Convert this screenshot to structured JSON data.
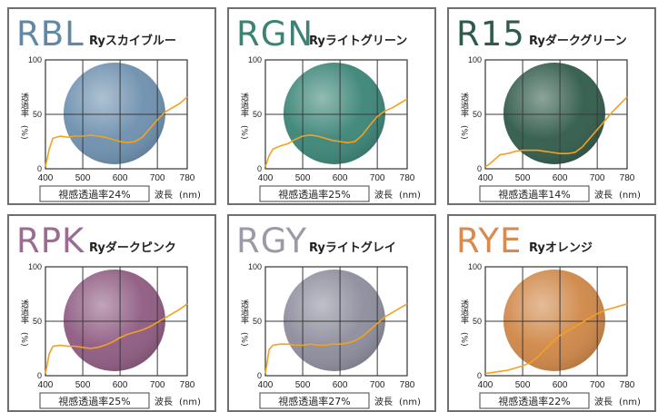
{
  "chart_data": [
    {
      "type": "line",
      "code": "RBL",
      "name": "Ryスカイブルー",
      "lens_color": "#6c8fae",
      "code_color": "#5f89a7",
      "xlabel": "波長",
      "xunit": "(nm)",
      "ylabel": "透過率",
      "yunit": "(%)",
      "xlim": [
        400,
        780
      ],
      "ylim": [
        0,
        100
      ],
      "x_ticks": [
        "400",
        "500",
        "600",
        "700",
        "780"
      ],
      "y_ticks": [
        "0",
        "50",
        "100"
      ],
      "visible_label": "視感透過率24%",
      "series": [
        {
          "x": [
            400,
            410,
            420,
            440,
            460,
            480,
            500,
            520,
            540,
            560,
            580,
            600,
            620,
            640,
            660,
            680,
            700,
            720,
            740,
            760,
            780
          ],
          "y": [
            2,
            18,
            28,
            30,
            29,
            30,
            30,
            31,
            30,
            29,
            27,
            25,
            24,
            25,
            29,
            37,
            45,
            52,
            56,
            60,
            66
          ]
        }
      ]
    },
    {
      "type": "line",
      "code": "RGN",
      "name": "Ryライトグリーン",
      "lens_color": "#3a8476",
      "code_color": "#3c8376",
      "xlabel": "波長",
      "xunit": "(nm)",
      "ylabel": "透過率",
      "yunit": "(%)",
      "xlim": [
        400,
        780
      ],
      "ylim": [
        0,
        100
      ],
      "x_ticks": [
        "400",
        "500",
        "600",
        "700",
        "780"
      ],
      "y_ticks": [
        "0",
        "50",
        "100"
      ],
      "visible_label": "視感透過率25%",
      "series": [
        {
          "x": [
            400,
            410,
            420,
            440,
            460,
            480,
            500,
            520,
            540,
            560,
            580,
            600,
            620,
            640,
            660,
            680,
            700,
            720,
            740,
            760,
            780
          ],
          "y": [
            2,
            12,
            18,
            21,
            23,
            27,
            30,
            31,
            30,
            28,
            26,
            25,
            24,
            25,
            31,
            40,
            48,
            53,
            56,
            60,
            64
          ]
        }
      ]
    },
    {
      "type": "line",
      "code": "R15",
      "name": "Ryダークグリーン",
      "lens_color": "#2f5a49",
      "code_color": "#2e5b4b",
      "xlabel": "波長",
      "xunit": "(nm)",
      "ylabel": "透過率",
      "yunit": "(%)",
      "xlim": [
        400,
        780
      ],
      "ylim": [
        0,
        100
      ],
      "x_ticks": [
        "400",
        "500",
        "600",
        "700",
        "780"
      ],
      "y_ticks": [
        "0",
        "50",
        "100"
      ],
      "visible_label": "視感透過率14%",
      "series": [
        {
          "x": [
            400,
            410,
            420,
            440,
            460,
            480,
            500,
            520,
            540,
            560,
            580,
            600,
            620,
            640,
            660,
            680,
            700,
            720,
            740,
            760,
            780
          ],
          "y": [
            2,
            4,
            7,
            13,
            14,
            16,
            17,
            17,
            17,
            16,
            15,
            14,
            14,
            15,
            20,
            28,
            36,
            44,
            52,
            59,
            66
          ]
        }
      ]
    },
    {
      "type": "line",
      "code": "RPK",
      "name": "Ryダークピンク",
      "lens_color": "#8e5a81",
      "code_color": "#9b6b90",
      "xlabel": "波長",
      "xunit": "(nm)",
      "ylabel": "透過率",
      "yunit": "(%)",
      "xlim": [
        400,
        780
      ],
      "ylim": [
        0,
        100
      ],
      "x_ticks": [
        "400",
        "500",
        "600",
        "700",
        "780"
      ],
      "y_ticks": [
        "0",
        "50",
        "100"
      ],
      "visible_label": "視感透過率25%",
      "series": [
        {
          "x": [
            400,
            410,
            420,
            440,
            460,
            480,
            500,
            520,
            540,
            560,
            580,
            600,
            620,
            640,
            660,
            680,
            700,
            720,
            740,
            760,
            780
          ],
          "y": [
            2,
            20,
            27,
            28,
            27,
            27,
            26,
            25,
            26,
            28,
            31,
            35,
            38,
            40,
            42,
            45,
            49,
            53,
            57,
            61,
            66
          ]
        }
      ]
    },
    {
      "type": "line",
      "code": "RGY",
      "name": "Ryライトグレイ",
      "lens_color": "#8c8c9c",
      "code_color": "#9a9aa9",
      "xlabel": "波長",
      "xunit": "(nm)",
      "ylabel": "透過率",
      "yunit": "(%)",
      "xlim": [
        400,
        780
      ],
      "ylim": [
        0,
        100
      ],
      "x_ticks": [
        "400",
        "500",
        "600",
        "700",
        "780"
      ],
      "y_ticks": [
        "0",
        "50",
        "100"
      ],
      "visible_label": "視感透過率27%",
      "series": [
        {
          "x": [
            400,
            410,
            420,
            440,
            460,
            480,
            500,
            520,
            540,
            560,
            580,
            600,
            620,
            640,
            660,
            680,
            700,
            720,
            740,
            760,
            780
          ],
          "y": [
            2,
            24,
            28,
            29,
            29,
            28,
            28,
            29,
            28,
            28,
            29,
            29,
            30,
            32,
            36,
            42,
            48,
            54,
            58,
            62,
            66
          ]
        }
      ]
    },
    {
      "type": "line",
      "code": "RYE",
      "name": "Ryオレンジ",
      "lens_color": "#cf8646",
      "code_color": "#d88a4f",
      "xlabel": "波長",
      "xunit": "(nm)",
      "ylabel": "透過率",
      "yunit": "(%)",
      "xlim": [
        400,
        780
      ],
      "ylim": [
        0,
        100
      ],
      "x_ticks": [
        "400",
        "500",
        "600",
        "700",
        "780"
      ],
      "y_ticks": [
        "0",
        "50",
        "100"
      ],
      "visible_label": "視感透過率22%",
      "series": [
        {
          "x": [
            400,
            420,
            440,
            460,
            480,
            500,
            520,
            540,
            560,
            580,
            600,
            620,
            640,
            660,
            680,
            700,
            720,
            740,
            760,
            780
          ],
          "y": [
            2,
            3,
            4,
            5,
            7,
            9,
            12,
            17,
            24,
            31,
            37,
            41,
            45,
            49,
            53,
            57,
            60,
            62,
            64,
            66
          ]
        }
      ]
    }
  ]
}
